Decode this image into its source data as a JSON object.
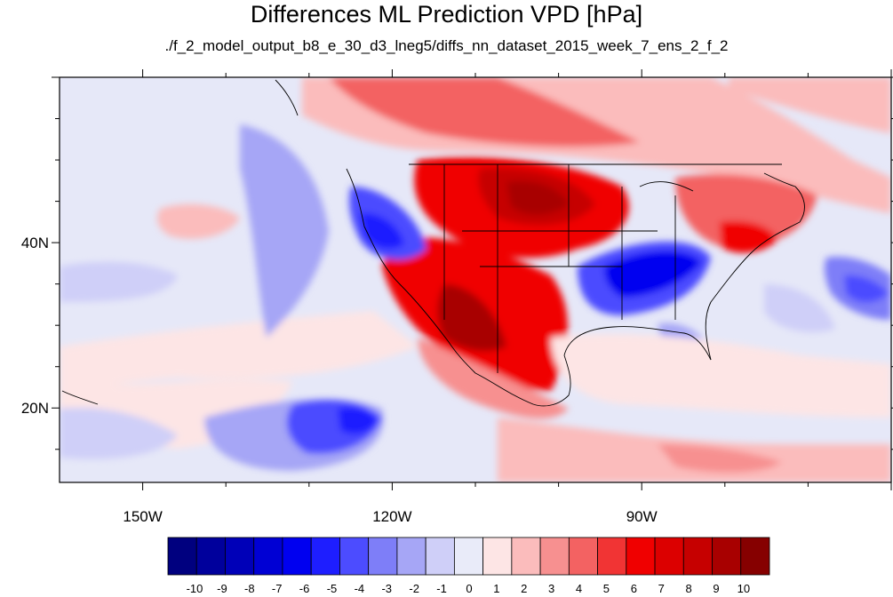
{
  "map": {
    "title": "Differences ML Prediction VPD [hPa]",
    "subtitle": "./f_2_model_output_b8_e_30_d3_lneg5/diffs_nn_dataset_2015_week_7_ens_2_f_2",
    "lon_range": [
      -160,
      -60
    ],
    "lat_range": [
      11,
      60
    ],
    "lon_ticks": [
      {
        "value": -150,
        "label": "150W"
      },
      {
        "value": -120,
        "label": "120W"
      },
      {
        "value": -90,
        "label": "90W"
      }
    ],
    "lat_ticks": [
      {
        "value": 40,
        "label": "40N"
      },
      {
        "value": 20,
        "label": "20N"
      }
    ],
    "colors": {
      "background_near_zero": "#e6e8f8",
      "frame": "#000000"
    }
  },
  "colorbar": {
    "labels": [
      "-10",
      "-9",
      "-8",
      "-7",
      "-6",
      "-5",
      "-4",
      "-3",
      "-2",
      "-1",
      "0",
      "1",
      "2",
      "3",
      "4",
      "5",
      "6",
      "7",
      "8",
      "9",
      "10"
    ],
    "colors": [
      "#00007f",
      "#00009c",
      "#0000b8",
      "#0000d4",
      "#0000f0",
      "#1e1eff",
      "#4c4cff",
      "#7e7ef8",
      "#a6a6f6",
      "#cfcff8",
      "#e9ebf9",
      "#fde5e5",
      "#fbbcbc",
      "#f79090",
      "#f36262",
      "#f13434",
      "#f00000",
      "#dc0000",
      "#c60000",
      "#a80000",
      "#860000"
    ]
  }
}
